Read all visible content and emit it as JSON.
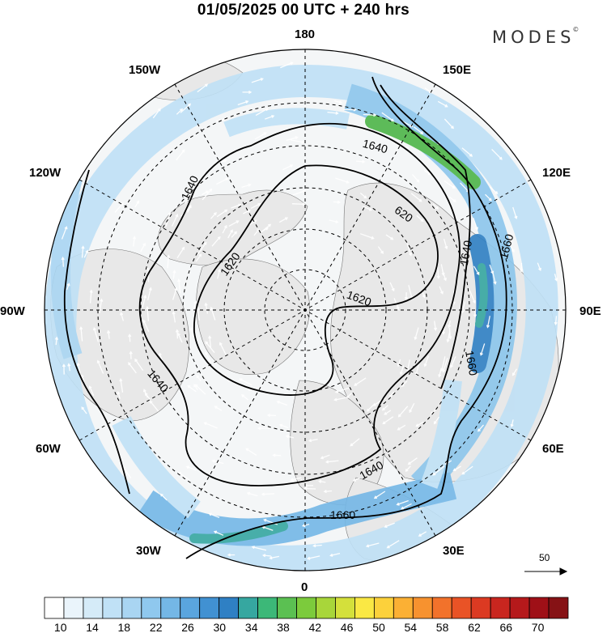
{
  "title": "01/05/2025  00 UTC  + 240 hrs",
  "brand": {
    "name": "MODES",
    "mark": "©"
  },
  "longitude_labels": {
    "lon_180": "180",
    "lon_150e": "150E",
    "lon_120e": "120E",
    "lon_90e": "90E",
    "lon_60e": "60E",
    "lon_30e": "30E",
    "lon_0": "0",
    "lon_30w": "30W",
    "lon_60w": "60W",
    "lon_90w": "90W",
    "lon_120w": "120W",
    "lon_150w": "150W"
  },
  "contours": [
    {
      "label": "1620"
    },
    {
      "label": "1640"
    },
    {
      "label": "1660"
    }
  ],
  "contour_text": {
    "c1": "1640",
    "c2": "1640",
    "c3": "1620",
    "c4": "1620",
    "c5": "620",
    "c6": "1640",
    "c7": "1660",
    "c8": "1620",
    "c9": "1640",
    "c10": "1660",
    "c11": "1640",
    "c12": "1660"
  },
  "vector_reference": {
    "label": "50"
  },
  "colorbar": {
    "tick_labels": [
      "10",
      "14",
      "18",
      "22",
      "26",
      "30",
      "34",
      "38",
      "42",
      "46",
      "50",
      "54",
      "58",
      "62",
      "66",
      "70"
    ],
    "colors": [
      "#ffffff",
      "#eaf4fb",
      "#d5ebf8",
      "#c0e1f6",
      "#a9d5f2",
      "#8fc8ee",
      "#74b7e6",
      "#5aa5de",
      "#4191d2",
      "#2f80c4",
      "#36a7a0",
      "#3cb878",
      "#5bc052",
      "#7ccb3c",
      "#a8d63a",
      "#d4e03b",
      "#fae844",
      "#fcd13b",
      "#fbb034",
      "#f7922f",
      "#f2722b",
      "#e95326",
      "#dc3a22",
      "#c9261f",
      "#b5191b",
      "#9f1017",
      "#861215"
    ]
  },
  "colors": {
    "land": "#ebebeb",
    "ocean": "#ffffff",
    "jet": "#4aa6e0",
    "jet_core": "#4db548"
  }
}
